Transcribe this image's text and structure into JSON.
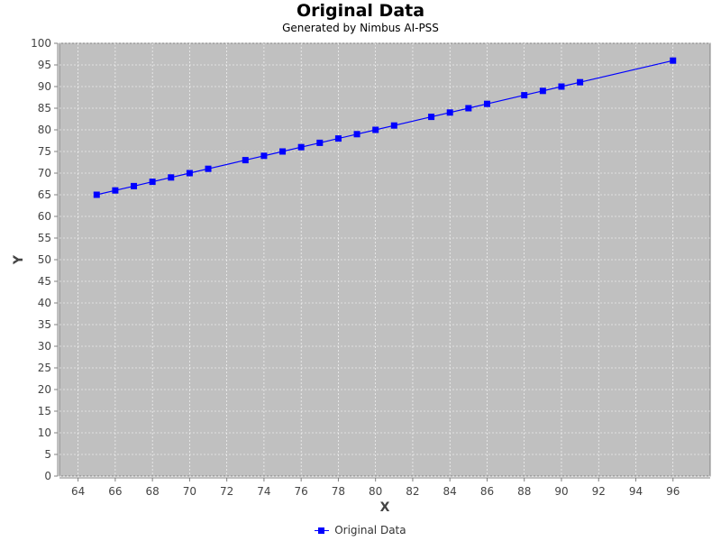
{
  "chart_data": {
    "type": "line",
    "title": "Original Data",
    "subtitle": "Generated by Nimbus AI-PSS",
    "xlabel": "X",
    "ylabel": "Y",
    "xlim": [
      63,
      98
    ],
    "ylim": [
      0,
      100
    ],
    "x_ticks": [
      64,
      66,
      68,
      70,
      72,
      74,
      76,
      78,
      80,
      82,
      84,
      86,
      88,
      90,
      92,
      94,
      96
    ],
    "y_ticks": [
      0,
      5,
      10,
      15,
      20,
      25,
      30,
      35,
      40,
      45,
      50,
      55,
      60,
      65,
      70,
      75,
      80,
      85,
      90,
      95,
      100
    ],
    "grid": true,
    "legend_position": "bottom-center",
    "colors": {
      "series": "#0000ff",
      "plot_background": "#c0c0c0",
      "grid": "#ffffff"
    },
    "series": [
      {
        "name": "Original Data",
        "x": [
          65,
          66,
          67,
          68,
          69,
          70,
          71,
          73,
          74,
          75,
          76,
          77,
          78,
          79,
          80,
          81,
          83,
          84,
          85,
          86,
          88,
          89,
          90,
          91,
          96
        ],
        "y": [
          65,
          66,
          67,
          68,
          69,
          70,
          71,
          73,
          74,
          75,
          76,
          77,
          78,
          79,
          80,
          81,
          83,
          84,
          85,
          86,
          88,
          89,
          90,
          91,
          96
        ]
      }
    ]
  }
}
